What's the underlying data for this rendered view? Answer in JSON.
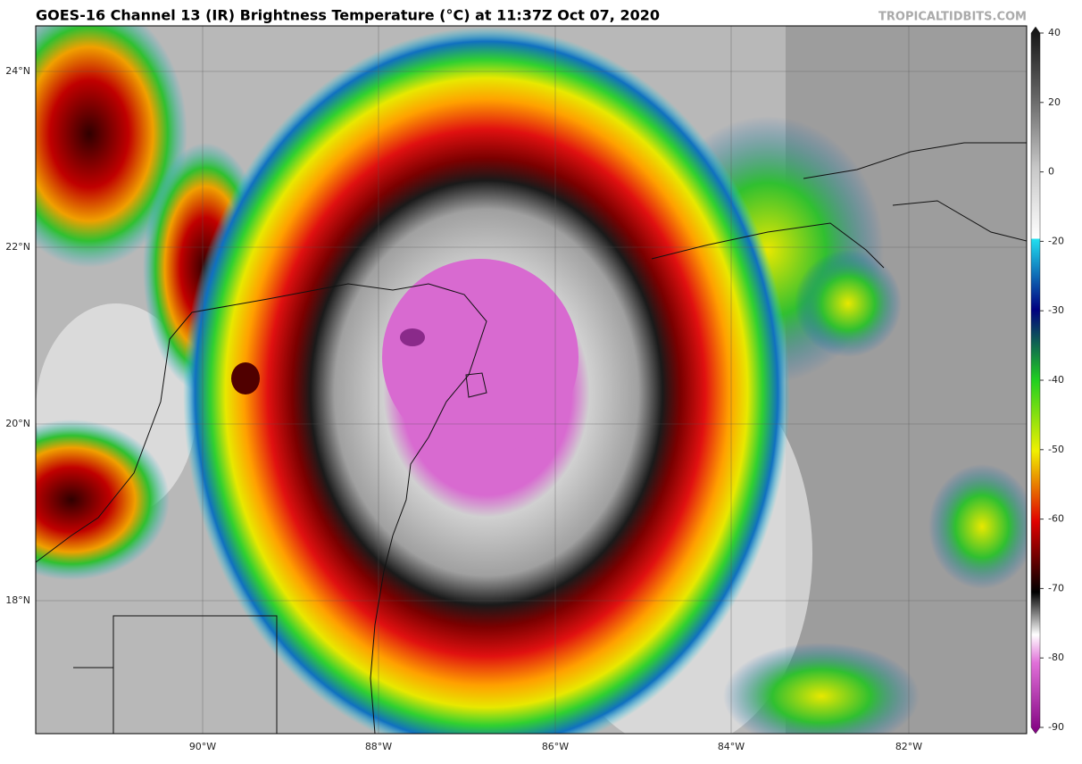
{
  "header": {
    "title": "GOES-16 Channel 13 (IR) Brightness Temperature (°C) at 11:37Z Oct 07, 2020",
    "source": "TROPICALTIDBITS.COM"
  },
  "map": {
    "lat_labels": [
      "24°N",
      "22°N",
      "20°N",
      "18°N"
    ],
    "lon_labels": [
      "90°W",
      "88°W",
      "86°W",
      "84°W",
      "82°W"
    ]
  },
  "colorbar": {
    "ticks": [
      40,
      20,
      0,
      -20,
      -30,
      -40,
      -50,
      -60,
      -70,
      -80,
      -90
    ]
  }
}
